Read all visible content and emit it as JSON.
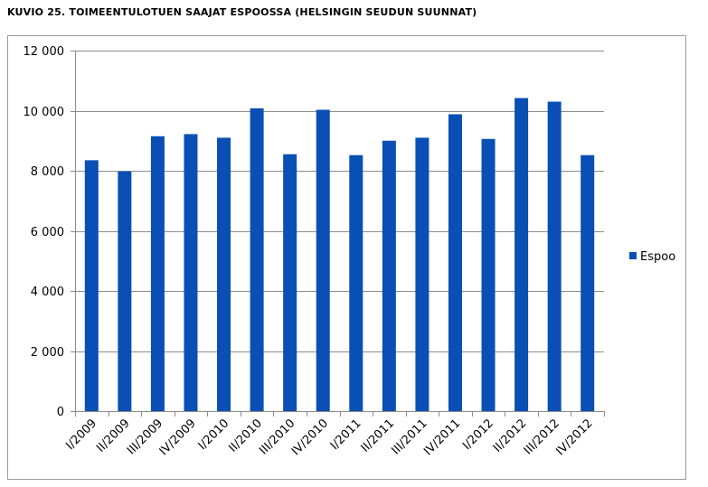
{
  "figure": {
    "title": "KUVIO 25. TOIMEENTULOTUEN SAAJAT ESPOOSSA (HELSINGIN SEUDUN SUUNNAT)"
  },
  "chart_data": {
    "type": "bar",
    "title": "KUVIO 25. TOIMEENTULOTUEN SAAJAT ESPOOSSA (HELSINGIN SEUDUN SUUNNAT)",
    "categories": [
      "I/2009",
      "II/2009",
      "III/2009",
      "IV/2009",
      "I/2010",
      "II/2010",
      "III/2010",
      "IV/2010",
      "I/2011",
      "II/2011",
      "III/2011",
      "IV/2011",
      "I/2012",
      "II/2012",
      "III/2012",
      "IV/2012"
    ],
    "series": [
      {
        "name": "Espoo",
        "color": "#0a4fb4",
        "values": [
          8350,
          7980,
          9150,
          9220,
          9100,
          10080,
          8550,
          10030,
          8520,
          9000,
          9100,
          9880,
          9060,
          10420,
          10300,
          8520
        ]
      }
    ],
    "ylim": [
      0,
      12000
    ],
    "yticks": [
      0,
      2000,
      4000,
      6000,
      8000,
      10000,
      12000
    ],
    "ytick_labels": [
      "0",
      "2 000",
      "4 000",
      "6 000",
      "8 000",
      "10 000",
      "12 000"
    ],
    "xlabel": "",
    "ylabel": "",
    "grid": true,
    "legend": "right"
  }
}
